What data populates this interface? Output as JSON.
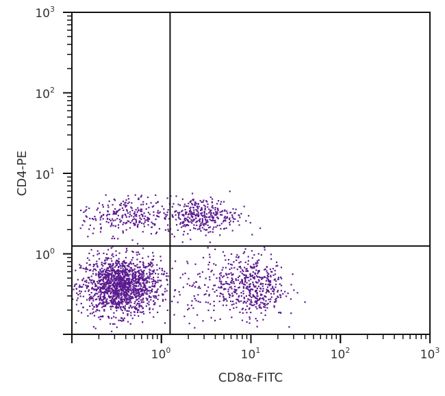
{
  "chart_data": {
    "type": "scatter",
    "title": "",
    "xlabel": "CD8α-FITC",
    "ylabel": "CD4-PE",
    "xscale": "log",
    "yscale": "log",
    "xlim": [
      0.1,
      1000
    ],
    "ylim": [
      0.1,
      1000
    ],
    "grid": false,
    "point_color": "#5b1a8f",
    "x_ticks": [
      {
        "base": "10",
        "exp": "0",
        "value": 1
      },
      {
        "base": "10",
        "exp": "1",
        "value": 10
      },
      {
        "base": "10",
        "exp": "2",
        "value": 100
      },
      {
        "base": "10",
        "exp": "3",
        "value": 1000
      }
    ],
    "y_ticks": [
      {
        "base": "10",
        "exp": "0",
        "value": 1
      },
      {
        "base": "10",
        "exp": "1",
        "value": 10
      },
      {
        "base": "10",
        "exp": "2",
        "value": 100
      },
      {
        "base": "10",
        "exp": "3",
        "value": 1000
      }
    ],
    "quadrant_gates": {
      "x": 1.25,
      "y": 1.25
    },
    "populations": [
      {
        "quadrant": "lower-left",
        "center": [
          0.35,
          0.4
        ],
        "log_sd": [
          0.22,
          0.18
        ],
        "count": 1500
      },
      {
        "quadrant": "upper-left",
        "center": [
          0.4,
          3.0
        ],
        "log_sd": [
          0.25,
          0.12
        ],
        "count": 260
      },
      {
        "quadrant": "upper-right",
        "center": [
          2.8,
          3.0
        ],
        "log_sd": [
          0.2,
          0.11
        ],
        "count": 340
      },
      {
        "quadrant": "lower-right",
        "center": [
          11,
          0.4
        ],
        "log_sd": [
          0.17,
          0.2
        ],
        "count": 380
      },
      {
        "quadrant": "lower-right",
        "center": [
          4.5,
          0.4
        ],
        "log_sd": [
          0.25,
          0.22
        ],
        "count": 200
      }
    ]
  }
}
